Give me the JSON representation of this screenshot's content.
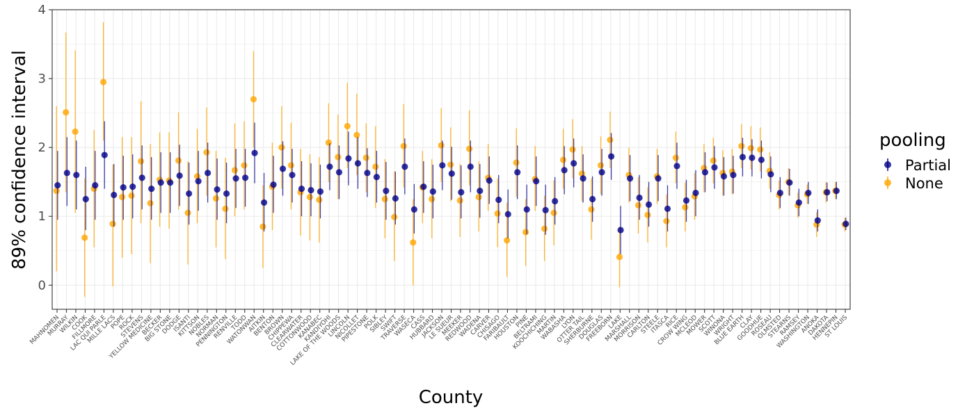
{
  "chart_data": {
    "type": "scatter",
    "xlabel": "County",
    "ylabel": "89% confidence interval",
    "ylim": [
      -0.35,
      4
    ],
    "yticks": [
      0,
      1,
      2,
      3,
      4
    ],
    "grid": true,
    "legend": {
      "title": "pooling",
      "placement": "right",
      "entries": [
        {
          "name": "Partial",
          "color": "#00008B"
        },
        {
          "name": "None",
          "color": "#FFA500"
        }
      ]
    },
    "categories": [
      "MAHNOMEN",
      "MURRAY",
      "WILKIN",
      "COOK",
      "FILLMORE",
      "LAC QUI PARLE",
      "MILLE LACS",
      "POPE",
      "ROCK",
      "STEVENS",
      "YELLOW MEDICINE",
      "BECKER",
      "BIG STONE",
      "DODGE",
      "ISANTI",
      "KITTSON",
      "NOBLES",
      "NORMAN",
      "PENNINGTON",
      "RENVILLE",
      "TODD",
      "WATONWAN",
      "AITKIN",
      "BENTON",
      "BROWN",
      "CHIPPEWA",
      "CLEARWATER",
      "COTTONWOOD",
      "KANABEC",
      "KANDIYOHI",
      "LAKE OF THE WOODS",
      "LINCOLN",
      "NICOLLET",
      "PIPESTONE",
      "POLK",
      "SIBLEY",
      "SWIFT",
      "TRAVERSE",
      "WASECA",
      "CASS",
      "HUBBARD",
      "JACKSON",
      "LE SUEUR",
      "MEEKER",
      "REDWOOD",
      "WADENA",
      "CARVER",
      "CHISAGO",
      "FARIBAULT",
      "HOUSTON",
      "PINE",
      "BELTRAMI",
      "KOOCHICHING",
      "MARTIN",
      "WABASHA",
      "LYON",
      "OTTER TAIL",
      "SHERBURNE",
      "DOUGLAS",
      "FREEBORN",
      "LAKE",
      "MARSHALL",
      "MORRISON",
      "CARLTON",
      "STEELE",
      "ITASCA",
      "RICE",
      "CROW WING",
      "MCLEOD",
      "MOWER",
      "SCOTT",
      "WINONA",
      "WRIGHT",
      "BLUE EARTH",
      "CLAY",
      "GOODHUE",
      "ROSEAU",
      "OLMSTED",
      "STEARNS",
      "RAMSEY",
      "WASHINGTON",
      "ANOKA",
      "DAKOTA",
      "HENNEPIN",
      "ST LOUIS"
    ],
    "series": [
      {
        "name": "Partial",
        "color": "#00008B",
        "values": [
          1.45,
          1.63,
          1.6,
          1.25,
          1.45,
          1.89,
          1.31,
          1.42,
          1.43,
          1.56,
          1.4,
          1.49,
          1.49,
          1.59,
          1.33,
          1.51,
          1.63,
          1.39,
          1.33,
          1.55,
          1.56,
          1.92,
          1.2,
          1.46,
          1.69,
          1.6,
          1.4,
          1.38,
          1.36,
          1.72,
          1.64,
          1.84,
          1.77,
          1.63,
          1.57,
          1.37,
          1.26,
          1.72,
          1.1,
          1.43,
          1.36,
          1.74,
          1.62,
          1.35,
          1.72,
          1.37,
          1.52,
          1.24,
          1.03,
          1.64,
          1.1,
          1.51,
          1.09,
          1.22,
          1.67,
          1.77,
          1.55,
          1.25,
          1.64,
          1.87,
          0.8,
          1.55,
          1.27,
          1.17,
          1.55,
          1.11,
          1.73,
          1.23,
          1.34,
          1.64,
          1.71,
          1.58,
          1.6,
          1.86,
          1.85,
          1.82,
          1.61,
          1.34,
          1.49,
          1.2,
          1.34,
          0.94,
          1.35,
          1.37,
          0.89
        ],
        "lower": [
          0.95,
          1.15,
          1.1,
          0.8,
          0.95,
          1.4,
          0.85,
          0.95,
          0.97,
          1.1,
          0.95,
          1.05,
          1.05,
          1.15,
          0.88,
          1.08,
          1.2,
          0.95,
          0.9,
          1.12,
          1.14,
          1.48,
          0.78,
          1.05,
          1.3,
          1.2,
          1.0,
          1.0,
          0.97,
          1.38,
          1.25,
          1.45,
          1.4,
          1.28,
          1.2,
          0.95,
          0.88,
          1.32,
          0.75,
          1.05,
          0.97,
          1.38,
          1.24,
          0.97,
          1.35,
          0.98,
          1.18,
          0.9,
          0.68,
          1.25,
          0.74,
          1.15,
          0.73,
          0.88,
          1.32,
          1.42,
          1.2,
          0.92,
          1.3,
          1.53,
          0.45,
          1.22,
          0.95,
          0.85,
          1.22,
          0.78,
          1.4,
          0.92,
          1.0,
          1.35,
          1.4,
          1.3,
          1.33,
          1.58,
          1.58,
          1.55,
          1.35,
          1.12,
          1.3,
          1.0,
          1.18,
          0.78,
          1.22,
          1.25,
          0.8
        ],
        "upper": [
          1.95,
          2.15,
          2.1,
          1.72,
          1.95,
          2.38,
          1.76,
          1.88,
          1.9,
          2.03,
          1.86,
          1.93,
          1.93,
          2.04,
          1.78,
          1.95,
          2.07,
          1.84,
          1.78,
          1.98,
          1.98,
          2.36,
          1.63,
          1.88,
          2.09,
          1.98,
          1.8,
          1.77,
          1.75,
          2.06,
          2.03,
          2.23,
          2.15,
          1.99,
          1.95,
          1.79,
          1.65,
          2.13,
          1.47,
          1.8,
          1.75,
          2.1,
          2.01,
          1.74,
          2.1,
          1.76,
          1.87,
          1.6,
          1.39,
          2.03,
          1.46,
          1.87,
          1.46,
          1.57,
          2.02,
          2.13,
          1.9,
          1.58,
          1.98,
          2.21,
          1.15,
          1.89,
          1.6,
          1.5,
          1.89,
          1.45,
          2.07,
          1.53,
          1.67,
          1.93,
          2.02,
          1.86,
          1.88,
          2.14,
          2.12,
          2.1,
          1.87,
          1.57,
          1.69,
          1.4,
          1.5,
          1.1,
          1.49,
          1.5,
          0.98
        ]
      },
      {
        "name": "None",
        "color": "#FFA500",
        "values": [
          1.37,
          2.51,
          2.23,
          0.69,
          1.4,
          2.95,
          0.89,
          1.28,
          1.3,
          1.8,
          1.19,
          1.53,
          1.52,
          1.81,
          1.05,
          1.58,
          1.93,
          1.26,
          1.11,
          1.67,
          1.74,
          2.7,
          0.85,
          1.43,
          2.0,
          1.74,
          1.35,
          1.28,
          1.24,
          2.07,
          1.86,
          2.31,
          2.18,
          1.85,
          1.72,
          1.25,
          0.99,
          2.02,
          0.62,
          1.42,
          1.25,
          2.03,
          1.75,
          1.23,
          1.98,
          1.28,
          1.56,
          1.04,
          0.65,
          1.78,
          0.77,
          1.54,
          0.82,
          1.05,
          1.82,
          1.97,
          1.62,
          1.1,
          1.74,
          2.11,
          0.41,
          1.6,
          1.16,
          1.02,
          1.58,
          0.93,
          1.85,
          1.13,
          1.29,
          1.7,
          1.81,
          1.63,
          1.65,
          2.02,
          1.99,
          1.97,
          1.66,
          1.31,
          1.5,
          1.16,
          1.32,
          0.88,
          1.35,
          1.37,
          0.88
        ],
        "lower": [
          0.2,
          1.35,
          1.05,
          -0.17,
          0.55,
          2.1,
          -0.02,
          0.4,
          0.45,
          0.9,
          0.32,
          0.85,
          0.82,
          1.1,
          0.3,
          0.9,
          1.3,
          0.55,
          0.38,
          1.0,
          1.1,
          2.0,
          0.25,
          0.8,
          1.4,
          1.1,
          0.72,
          0.65,
          0.62,
          1.5,
          1.25,
          1.7,
          1.6,
          1.35,
          1.12,
          0.68,
          0.35,
          1.42,
          0.0,
          0.9,
          0.68,
          1.5,
          1.22,
          0.7,
          1.45,
          0.78,
          1.08,
          0.55,
          0.12,
          1.28,
          0.28,
          1.08,
          0.35,
          0.58,
          1.4,
          1.55,
          1.22,
          0.66,
          1.32,
          1.7,
          -0.03,
          1.2,
          0.75,
          0.62,
          1.18,
          0.55,
          1.48,
          0.78,
          0.95,
          1.35,
          1.48,
          1.3,
          1.32,
          1.7,
          1.68,
          1.65,
          1.4,
          1.1,
          1.3,
          0.98,
          1.18,
          0.7,
          1.2,
          1.25,
          0.78
        ],
        "upper": [
          2.6,
          3.67,
          3.41,
          1.55,
          2.25,
          3.82,
          1.75,
          2.15,
          2.15,
          2.67,
          2.05,
          2.22,
          2.22,
          2.51,
          1.8,
          2.27,
          2.58,
          1.95,
          1.85,
          2.35,
          2.38,
          3.4,
          1.45,
          2.07,
          2.6,
          2.36,
          1.98,
          1.9,
          1.86,
          2.64,
          2.48,
          2.94,
          2.78,
          2.35,
          2.31,
          1.83,
          1.65,
          2.63,
          1.25,
          1.95,
          1.83,
          2.57,
          2.29,
          1.76,
          2.54,
          1.8,
          2.05,
          1.55,
          1.2,
          2.28,
          1.25,
          2.02,
          1.3,
          1.52,
          2.27,
          2.41,
          2.02,
          1.55,
          2.16,
          2.52,
          0.85,
          2.0,
          1.57,
          1.42,
          1.98,
          1.32,
          2.23,
          1.49,
          1.63,
          2.05,
          2.14,
          1.96,
          1.98,
          2.34,
          2.31,
          2.29,
          1.93,
          1.52,
          1.7,
          1.34,
          1.46,
          1.06,
          1.5,
          1.5,
          0.98
        ]
      }
    ]
  }
}
